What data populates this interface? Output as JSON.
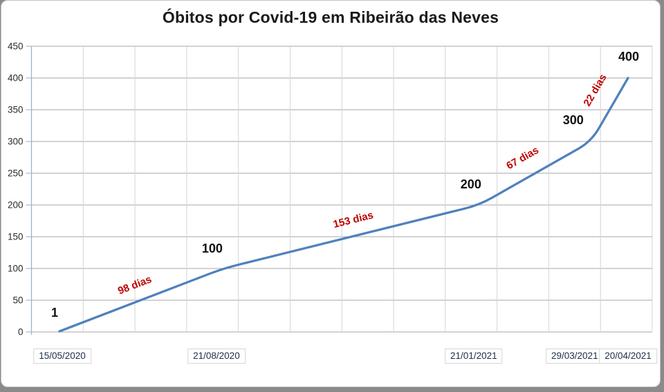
{
  "chart_data": {
    "type": "line",
    "title": "Óbitos por Covid-19 em Ribeirão das Neves",
    "xlabel": "",
    "ylabel": "",
    "x_dates": [
      "15/05/2020",
      "21/08/2020",
      "21/01/2021",
      "29/03/2021",
      "20/04/2021"
    ],
    "x_days_offset": [
      0,
      98,
      251,
      318,
      340
    ],
    "values": [
      1,
      100,
      200,
      300,
      400
    ],
    "point_labels": [
      "1",
      "100",
      "200",
      "300",
      "400"
    ],
    "segment_labels": [
      "98 dias",
      "153 dias",
      "67 dias",
      "22 dias"
    ],
    "y_ticks": [
      0,
      50,
      100,
      150,
      200,
      250,
      300,
      350,
      400,
      450
    ],
    "ylim": [
      0,
      450
    ],
    "x_vertical_gridline_intervals": 12,
    "grid": true,
    "legend": false,
    "colors": {
      "line": "#4F81BD",
      "annotation": "#C00000",
      "point_label": "#111111",
      "h_grid": "#A6A6A6",
      "v_grid": "#D4D4D4",
      "axis_line": "#95B3D7",
      "tick": "#A6A6A6",
      "y_tick_text": "#2b2b2b",
      "date_text": "#20304a",
      "date_border": "#d6d6d6",
      "title_text": "#1a1a1a"
    }
  }
}
